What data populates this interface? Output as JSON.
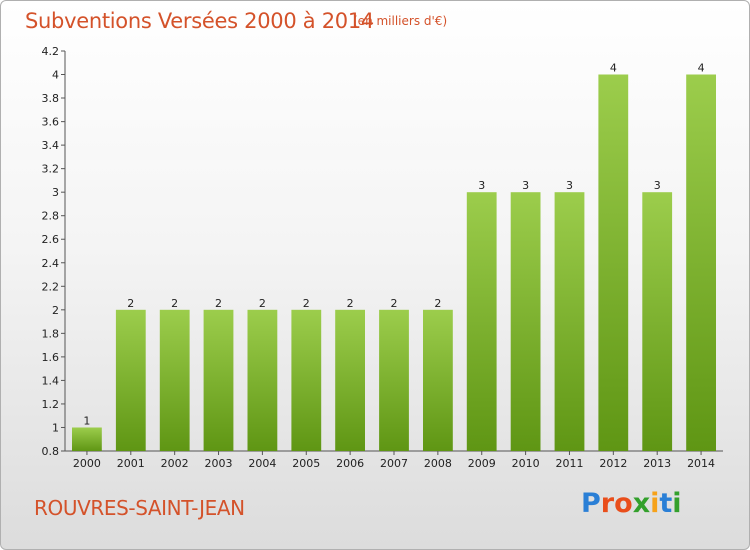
{
  "header": {
    "title": "Subventions Versées 2000 à 2014",
    "unit": "(en milliers d'€)"
  },
  "footer": {
    "place": "ROUVRES-SAINT-JEAN",
    "logo": "Proxiti"
  },
  "colors": {
    "accent": "#d4522a",
    "bar_top": "#9ccd4c",
    "bar_bottom": "#5f9614",
    "logo_letters": [
      "#2a7fd6",
      "#e94e1b",
      "#e94e1b",
      "#33a02c",
      "#f6a21a",
      "#2a7fd6",
      "#33a02c"
    ]
  },
  "chart_data": {
    "type": "bar",
    "title": "Subventions Versées 2000 à 2014",
    "xlabel": "",
    "ylabel": "",
    "categories": [
      "2000",
      "2001",
      "2002",
      "2003",
      "2004",
      "2005",
      "2006",
      "2007",
      "2008",
      "2009",
      "2010",
      "2011",
      "2012",
      "2013",
      "2014"
    ],
    "values": [
      1,
      2,
      2,
      2,
      2,
      2,
      2,
      2,
      2,
      3,
      3,
      3,
      4,
      3,
      4
    ],
    "data_labels": [
      "1",
      "2",
      "2",
      "2",
      "2",
      "2",
      "2",
      "2",
      "2",
      "3",
      "3",
      "3",
      "4",
      "3",
      "4"
    ],
    "ylim": [
      0.8,
      4.2
    ],
    "yticks": [
      0.8,
      1,
      1.2,
      1.4,
      1.6,
      1.8,
      2,
      2.2,
      2.4,
      2.6,
      2.8,
      3,
      3.2,
      3.4,
      3.6,
      3.8,
      4,
      4.2
    ],
    "ytick_labels": [
      "0.8",
      "1",
      "1.2",
      "1.4",
      "1.6",
      "1.8",
      "2",
      "2.2",
      "2.4",
      "2.6",
      "2.8",
      "3",
      "3.2",
      "3.4",
      "3.6",
      "3.8",
      "4",
      "4.2"
    ],
    "grid": false,
    "legend": "none"
  }
}
